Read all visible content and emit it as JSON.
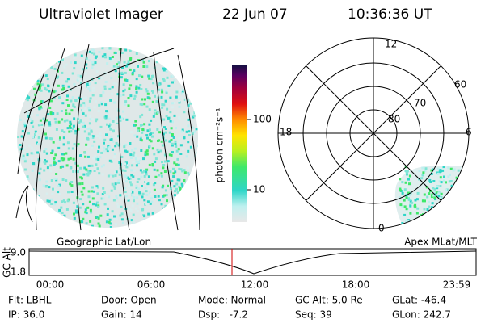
{
  "header": {
    "title": "Ultraviolet Imager",
    "date": "22 Jun 07",
    "time": "10:36:36 UT"
  },
  "colorbar": {
    "label": "photon cm⁻²s⁻¹",
    "ticks": [
      "100",
      "10"
    ]
  },
  "polar": {
    "mlt_labels": [
      "12",
      "18",
      "6",
      "0"
    ],
    "lat_labels": [
      "60",
      "70",
      "80"
    ]
  },
  "panels": {
    "left": "Geographic Lat/Lon",
    "right": "Apex MLat/MLT"
  },
  "altitude": {
    "label": "GC Alt",
    "ticks": [
      "9.0",
      "1.8"
    ],
    "time_ticks": [
      "00:00",
      "06:00",
      "12:00",
      "18:00",
      "23:59"
    ]
  },
  "info": [
    [
      "Flt: LBHL",
      "Door: Open",
      "Mode: Normal",
      "GC Alt: 5.0 Re",
      "GLat: -46.4"
    ],
    [
      "IP: 36.0",
      "Gain: 14",
      "Dsp:   -7.2",
      "Seq: 39",
      "GLon: 242.7"
    ]
  ]
}
